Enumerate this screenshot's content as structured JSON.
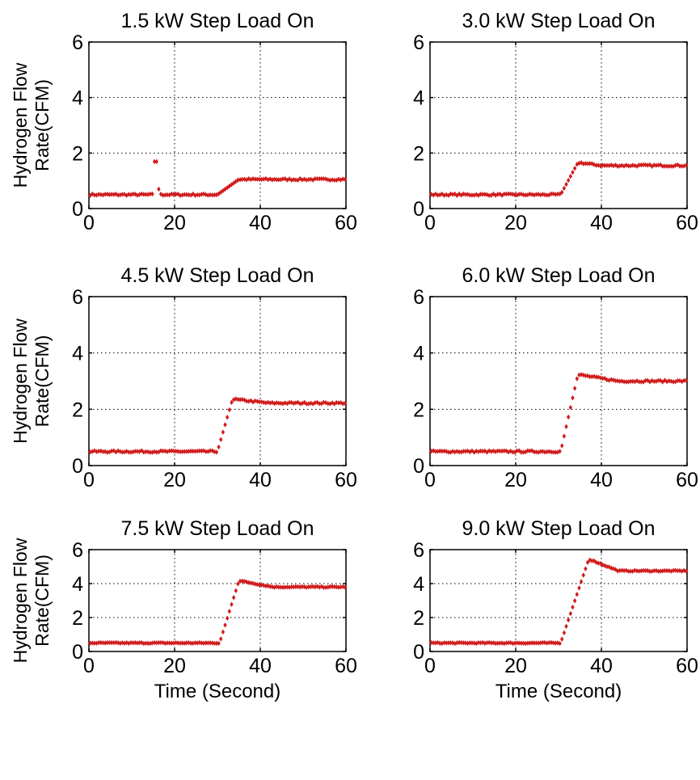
{
  "figure": {
    "ylabel_line1": "Hydrogen Flow",
    "ylabel_line2": "Rate(CFM)",
    "xlabel": "Time (Second)",
    "marker_color": "#d01c1c"
  },
  "chart_data": [
    {
      "type": "scatter",
      "title": "1.5 kW Step Load On",
      "xlabel": "",
      "ylabel": "Hydrogen Flow Rate(CFM)",
      "xlim": [
        0,
        60
      ],
      "ylim": [
        0,
        6
      ],
      "xticks": [
        0,
        20,
        40,
        60
      ],
      "yticks": [
        0,
        2,
        4,
        6
      ],
      "grid": true,
      "series": [
        {
          "baseline": 0.5,
          "spike": {
            "x": 15.5,
            "y": 1.7
          },
          "step_start": 30,
          "step_end": 35,
          "final": 1.05,
          "peak": 1.05,
          "peak_x": 35,
          "settle_x": 36
        }
      ]
    },
    {
      "type": "scatter",
      "title": "3.0 kW Step Load On",
      "xlabel": "",
      "ylabel": "",
      "xlim": [
        0,
        60
      ],
      "ylim": [
        0,
        6
      ],
      "xticks": [
        0,
        20,
        40,
        60
      ],
      "yticks": [
        0,
        2,
        4,
        6
      ],
      "grid": true,
      "series": [
        {
          "baseline": 0.5,
          "step_start": 30.5,
          "step_end": 34.5,
          "final": 1.55,
          "peak": 1.65,
          "peak_x": 35,
          "settle_x": 40
        }
      ]
    },
    {
      "type": "scatter",
      "title": "4.5 kW Step Load On",
      "xlabel": "",
      "ylabel": "Hydrogen Flow Rate(CFM)",
      "xlim": [
        0,
        60
      ],
      "ylim": [
        0,
        6
      ],
      "xticks": [
        0,
        20,
        40,
        60
      ],
      "yticks": [
        0,
        2,
        4,
        6
      ],
      "grid": true,
      "series": [
        {
          "baseline": 0.5,
          "step_start": 30,
          "step_end": 33.5,
          "final": 2.22,
          "peak": 2.35,
          "peak_x": 34,
          "settle_x": 42
        }
      ]
    },
    {
      "type": "scatter",
      "title": "6.0 kW Step Load On",
      "xlabel": "",
      "ylabel": "",
      "xlim": [
        0,
        60
      ],
      "ylim": [
        0,
        6
      ],
      "xticks": [
        0,
        20,
        40,
        60
      ],
      "yticks": [
        0,
        2,
        4,
        6
      ],
      "grid": true,
      "series": [
        {
          "baseline": 0.5,
          "step_start": 30.5,
          "step_end": 34.5,
          "final": 3.0,
          "peak": 3.22,
          "peak_x": 35,
          "settle_x": 44
        }
      ]
    },
    {
      "type": "scatter",
      "title": "7.5 kW Step Load On",
      "xlabel": "Time (Second)",
      "ylabel": "Hydrogen Flow Rate(CFM)",
      "xlim": [
        0,
        60
      ],
      "ylim": [
        0,
        6
      ],
      "xticks": [
        0,
        20,
        40,
        60
      ],
      "yticks": [
        0,
        2,
        4,
        6
      ],
      "grid": true,
      "series": [
        {
          "baseline": 0.5,
          "step_start": 30.5,
          "step_end": 35,
          "final": 3.8,
          "peak": 4.15,
          "peak_x": 35.5,
          "settle_x": 43
        }
      ]
    },
    {
      "type": "scatter",
      "title": "9.0 kW Step Load On",
      "xlabel": "Time (Second)",
      "ylabel": "",
      "xlim": [
        0,
        60
      ],
      "ylim": [
        0,
        6
      ],
      "xticks": [
        0,
        20,
        40,
        60
      ],
      "yticks": [
        0,
        2,
        4,
        6
      ],
      "grid": true,
      "series": [
        {
          "baseline": 0.5,
          "step_start": 30.5,
          "step_end": 37,
          "final": 4.75,
          "peak": 5.4,
          "peak_x": 37.5,
          "settle_x": 44
        }
      ]
    }
  ]
}
